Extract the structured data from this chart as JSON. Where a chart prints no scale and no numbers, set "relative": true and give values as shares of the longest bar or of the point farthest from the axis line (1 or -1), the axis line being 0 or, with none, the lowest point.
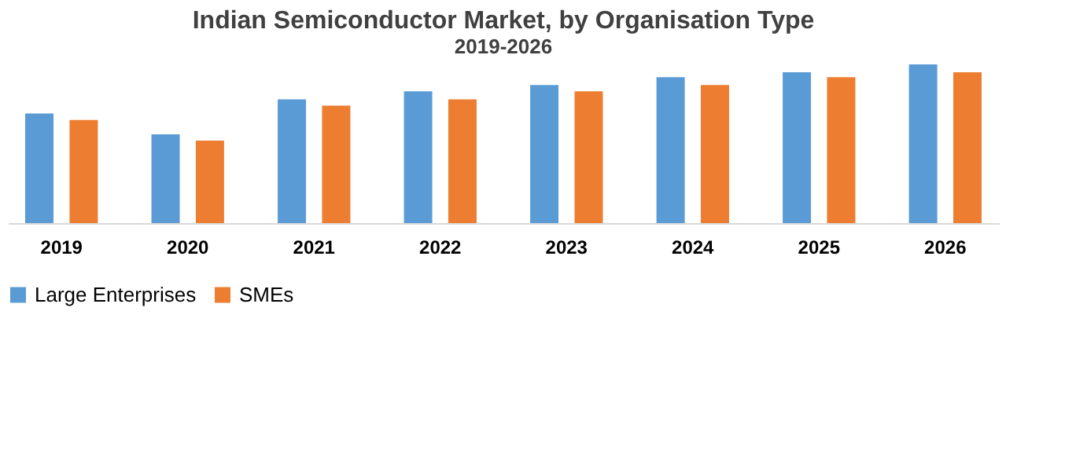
{
  "chart_data": {
    "type": "bar",
    "title": "Indian Semiconductor Market, by Organisation Type",
    "subtitle": "2019-2026",
    "relative": true,
    "legend": "bottom",
    "grid": false,
    "categories": [
      "2019",
      "2020",
      "2021",
      "2022",
      "2023",
      "2024",
      "2025",
      "2026"
    ],
    "series": [
      {
        "name": "Large Enterprises",
        "color": "#5b9bd5",
        "values": [
          0.69,
          0.56,
          0.78,
          0.83,
          0.87,
          0.92,
          0.95,
          1
        ]
      },
      {
        "name": "SMEs",
        "color": "#ed7d31",
        "values": [
          0.65,
          0.52,
          0.74,
          0.78,
          0.83,
          0.87,
          0.92,
          0.95
        ]
      }
    ]
  }
}
